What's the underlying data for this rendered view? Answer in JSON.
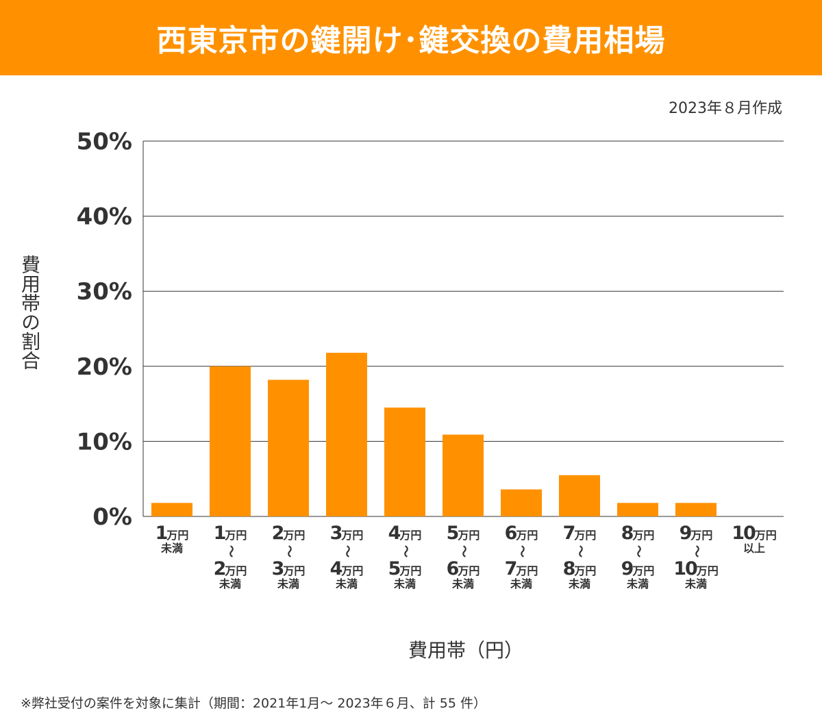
{
  "header": {
    "title": "西東京市の鍵開け･鍵交換の費用相場"
  },
  "date_note": "2023年８月作成",
  "footnote": "※弊社受付の案件を対象に集計（期間：2021年1月～ 2023年６月、計 55 件）",
  "colors": {
    "bar": "#ff9100",
    "header": "#ff9100",
    "grid": "#333333"
  },
  "chart_data": {
    "type": "bar",
    "xlabel": "費用帯（円）",
    "ylabel": "費用帯の割合",
    "ylim": [
      0,
      50
    ],
    "yticks": [
      "0%",
      "10%",
      "20%",
      "30%",
      "40%",
      "50%"
    ],
    "grid": true,
    "range_sep": "〜",
    "categories": [
      {
        "from": "1",
        "unit": "万円",
        "suffix": "未満"
      },
      {
        "from": "1",
        "unit": "万円",
        "to": "2",
        "suffix": "未満"
      },
      {
        "from": "2",
        "unit": "万円",
        "to": "3",
        "suffix": "未満"
      },
      {
        "from": "3",
        "unit": "万円",
        "to": "4",
        "suffix": "未満"
      },
      {
        "from": "4",
        "unit": "万円",
        "to": "5",
        "suffix": "未満"
      },
      {
        "from": "5",
        "unit": "万円",
        "to": "6",
        "suffix": "未満"
      },
      {
        "from": "6",
        "unit": "万円",
        "to": "7",
        "suffix": "未満"
      },
      {
        "from": "7",
        "unit": "万円",
        "to": "8",
        "suffix": "未満"
      },
      {
        "from": "8",
        "unit": "万円",
        "to": "9",
        "suffix": "未満"
      },
      {
        "from": "9",
        "unit": "万円",
        "to": "10",
        "suffix": "未満"
      },
      {
        "from": "10",
        "unit": "万円",
        "suffix": "以上"
      }
    ],
    "values": [
      1.8,
      20.0,
      18.2,
      21.8,
      14.5,
      10.9,
      3.6,
      5.5,
      1.8,
      1.8,
      0
    ]
  }
}
